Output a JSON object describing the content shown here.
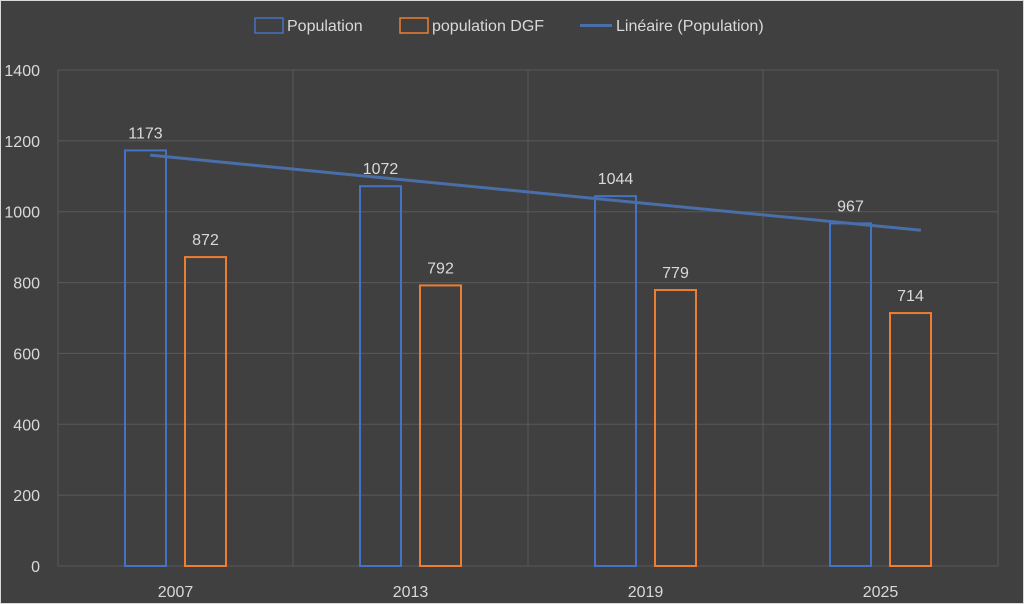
{
  "chart_data": {
    "type": "bar",
    "title": "",
    "xlabel": "",
    "ylabel": "",
    "categories": [
      "2007",
      "2013",
      "2019",
      "2025"
    ],
    "series": [
      {
        "name": "Population",
        "values": [
          1173,
          1072,
          1044,
          967
        ],
        "color": "#4472c4"
      },
      {
        "name": "population DGF",
        "values": [
          872,
          792,
          779,
          714
        ],
        "color": "#ed7d31"
      }
    ],
    "trendline": {
      "name": "Linéaire (Population)",
      "of_series": "Population",
      "type": "linear",
      "color": "#4a6ea8"
    },
    "ylim": [
      0,
      1400
    ],
    "yticks": [
      0,
      200,
      400,
      600,
      800,
      1000,
      1200,
      1400
    ],
    "grid": true,
    "legend_position": "top-center"
  }
}
